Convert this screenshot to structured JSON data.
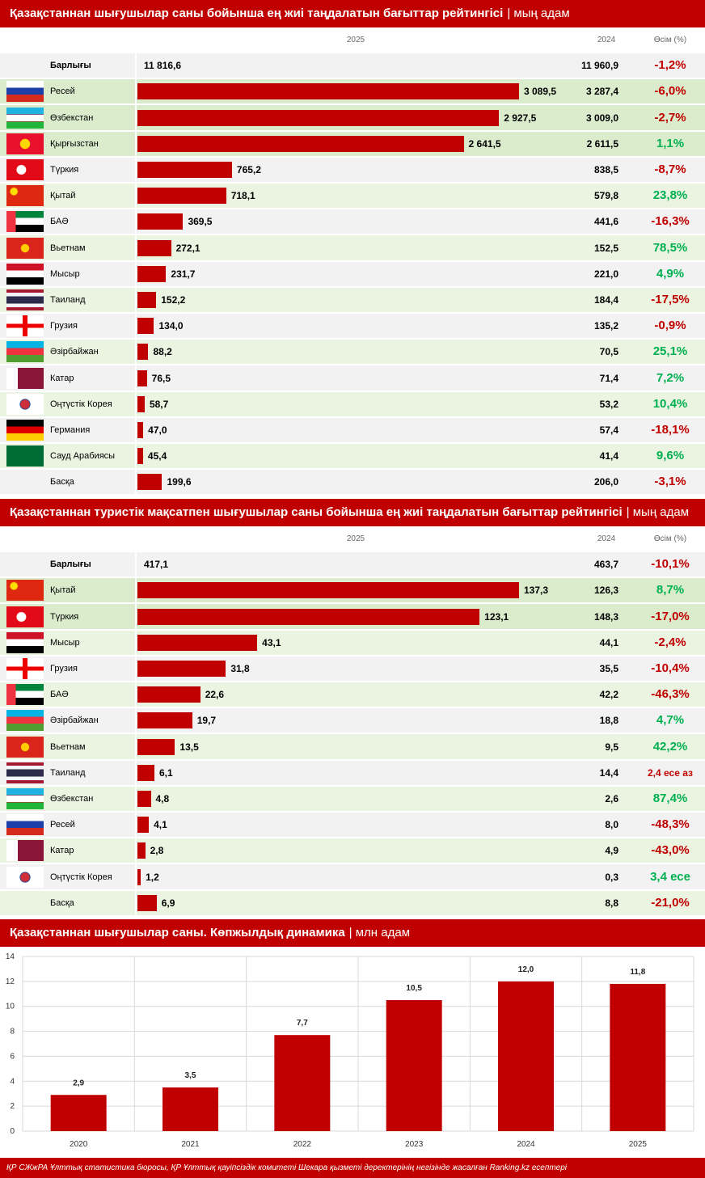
{
  "chart_data": [
    {
      "type": "hbar",
      "title": "Қазақстаннан шығушылар саны бойынша ең жиі таңдалатын бағыттар рейтингісі",
      "unit": "| мың адам",
      "col_headers": [
        "2025",
        "2024",
        "Өсім (%)"
      ],
      "total": {
        "name": "Барлығы",
        "value": 11816.6,
        "value_label": "11 816,6",
        "value_2024": 11960.9,
        "value_2024_label": "11 960,9",
        "growth": "-1,2%",
        "growth_color": "#c00000"
      },
      "categories": [
        "Ресей",
        "Өзбекстан",
        "Қырғызстан",
        "Түркия",
        "Қытай",
        "БАӘ",
        "Вьетнам",
        "Мысыр",
        "Таиланд",
        "Грузия",
        "Әзірбайжан",
        "Катар",
        "Оңтүстік Корея",
        "Германия",
        "Сауд Арабиясы",
        "Басқа"
      ],
      "values": [
        3089.5,
        2927.5,
        2641.5,
        765.2,
        718.1,
        369.5,
        272.1,
        231.7,
        152.2,
        134.0,
        88.2,
        76.5,
        58.7,
        47.0,
        45.4,
        199.6
      ],
      "value_labels": [
        "3 089,5",
        "2 927,5",
        "2 641,5",
        "765,2",
        "718,1",
        "369,5",
        "272,1",
        "231,7",
        "152,2",
        "134,0",
        "88,2",
        "76,5",
        "58,7",
        "47,0",
        "45,4",
        "199,6"
      ],
      "values_2024": [
        3287.4,
        3009.0,
        2611.5,
        838.5,
        579.8,
        441.6,
        152.5,
        221.0,
        184.4,
        135.2,
        70.5,
        71.4,
        53.2,
        57.4,
        41.4,
        206.0
      ],
      "values_2024_labels": [
        "3 287,4",
        "3 009,0",
        "2 611,5",
        "838,5",
        "579,8",
        "441,6",
        "152,5",
        "221,0",
        "184,4",
        "135,2",
        "70,5",
        "71,4",
        "53,2",
        "57,4",
        "41,4",
        "206,0"
      ],
      "growth": [
        "-6,0%",
        "-2,7%",
        "1,1%",
        "-8,7%",
        "23,8%",
        "-16,3%",
        "78,5%",
        "4,9%",
        "-17,5%",
        "-0,9%",
        "25,1%",
        "7,2%",
        "10,4%",
        "-18,1%",
        "9,6%",
        "-3,1%"
      ],
      "growth_colors": [
        "#c00000",
        "#c00000",
        "#00b050",
        "#c00000",
        "#00b050",
        "#c00000",
        "#00b050",
        "#00b050",
        "#c00000",
        "#c00000",
        "#00b050",
        "#00b050",
        "#00b050",
        "#c00000",
        "#00b050",
        "#c00000"
      ],
      "color": "#c00000"
    },
    {
      "type": "hbar",
      "title": "Қазақстаннан туристік мақсатпен шығушылар саны бойынша ең жиі таңдалатын бағыттар рейтингісі",
      "unit": "| мың адам",
      "col_headers": [
        "2025",
        "2024",
        "Өсім (%)"
      ],
      "total": {
        "name": "Барлығы",
        "value": 417.1,
        "value_label": "417,1",
        "value_2024": 463.7,
        "value_2024_label": "463,7",
        "growth": "-10,1%",
        "growth_color": "#c00000"
      },
      "categories": [
        "Қытай",
        "Түркия",
        "Мысыр",
        "Грузия",
        "БАӘ",
        "Әзірбайжан",
        "Вьетнам",
        "Таиланд",
        "Өзбекстан",
        "Ресей",
        "Катар",
        "Оңтүстік Корея",
        "Басқа"
      ],
      "values": [
        137.3,
        123.1,
        43.1,
        31.8,
        22.6,
        19.7,
        13.5,
        6.1,
        4.8,
        4.1,
        2.8,
        1.2,
        6.9
      ],
      "value_labels": [
        "137,3",
        "123,1",
        "43,1",
        "31,8",
        "22,6",
        "19,7",
        "13,5",
        "6,1",
        "4,8",
        "4,1",
        "2,8",
        "1,2",
        "6,9"
      ],
      "values_2024": [
        126.3,
        148.3,
        44.1,
        35.5,
        42.2,
        18.8,
        9.5,
        14.4,
        2.6,
        8.0,
        4.9,
        0.3,
        8.8
      ],
      "values_2024_labels": [
        "126,3",
        "148,3",
        "44,1",
        "35,5",
        "42,2",
        "18,8",
        "9,5",
        "14,4",
        "2,6",
        "8,0",
        "4,9",
        "0,3",
        "8,8"
      ],
      "growth": [
        "8,7%",
        "-17,0%",
        "-2,4%",
        "-10,4%",
        "-46,3%",
        "4,7%",
        "42,2%",
        "2,4 есе аз",
        "87,4%",
        "-48,3%",
        "-43,0%",
        "3,4 есе",
        "-21,0%"
      ],
      "growth_colors": [
        "#00b050",
        "#c00000",
        "#c00000",
        "#c00000",
        "#c00000",
        "#00b050",
        "#00b050",
        "#c00000",
        "#00b050",
        "#c00000",
        "#c00000",
        "#00b050",
        "#c00000"
      ],
      "color": "#c00000"
    },
    {
      "type": "bar",
      "title": "Қазақстаннан шығушылар саны. Көпжылдық динамика",
      "unit": "| млн адам",
      "categories": [
        "2020",
        "2021",
        "2022",
        "2023",
        "2024",
        "2025"
      ],
      "values": [
        2.9,
        3.5,
        7.7,
        10.5,
        12.0,
        11.8
      ],
      "value_labels": [
        "2,9",
        "3,5",
        "7,7",
        "10,5",
        "12,0",
        "11,8"
      ],
      "ylim": [
        0,
        14
      ],
      "yticks": [
        0,
        2,
        4,
        6,
        8,
        10,
        12,
        14
      ],
      "grid": true,
      "color": "#c00000"
    }
  ],
  "source": "ҚР СЖжРА Ұлттық статистика бюросы, ҚР Ұлттық қауіпсіздік комитеті Шекара қызметі деректерінің негізінде жасалған Ranking.kz есептері"
}
